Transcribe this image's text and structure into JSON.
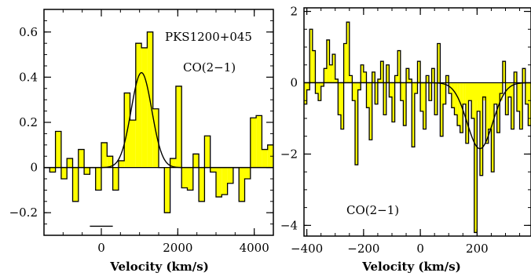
{
  "chart_data": [
    {
      "type": "step",
      "object": "PKS1200+045",
      "annotations": [
        "PKS1200+045",
        "CO(2−1)"
      ],
      "xlabel": "Velocity (km/s)",
      "ylabel": "",
      "xlim": [
        -1500,
        4500
      ],
      "ylim": [
        -0.3,
        0.7
      ],
      "xticks": [
        0,
        2000,
        4000
      ],
      "xtick_labels": [
        "0",
        "2000",
        "4000"
      ],
      "yticks": [
        -0.2,
        0,
        0.2,
        0.4,
        0.6
      ],
      "ytick_labels": [
        "−0.2",
        "0",
        "0.2",
        "0.4",
        "0.6"
      ],
      "fill_color": "#ffff00",
      "series": [
        {
          "style": "histogram",
          "x": [
            -1500,
            -1350,
            -1200,
            -1050,
            -900,
            -750,
            -600,
            -450,
            -300,
            -150,
            0,
            150,
            300,
            450,
            600,
            750,
            900,
            1050,
            1200,
            1350,
            1500,
            1650,
            1800,
            1950,
            2100,
            2250,
            2400,
            2550,
            2700,
            2850,
            3000,
            3150,
            3300,
            3450,
            3600,
            3750,
            3900,
            4050,
            4200,
            4350
          ],
          "values": [
            0.0,
            -0.02,
            0.16,
            -0.05,
            0.04,
            -0.15,
            0.08,
            -0.03,
            0.0,
            -0.1,
            0.11,
            0.05,
            -0.1,
            0.03,
            0.33,
            0.21,
            0.55,
            0.53,
            0.6,
            0.26,
            0.0,
            -0.2,
            0.04,
            0.36,
            -0.09,
            -0.1,
            0.06,
            -0.15,
            0.14,
            -0.02,
            -0.13,
            -0.12,
            -0.07,
            0.0,
            -0.15,
            -0.05,
            0.22,
            0.23,
            0.08,
            0.1
          ]
        },
        {
          "style": "line",
          "name": "",
          "description": "Gaussian fit",
          "peak": 0.42,
          "center": 1050,
          "sigma": 270
        }
      ],
      "marker_line": {
        "x": [
          -300,
          300
        ],
        "y": -0.26
      }
    },
    {
      "type": "step",
      "annotations": [
        "CO(2−1)"
      ],
      "xlabel": "Velocity (km/s)",
      "ylabel": "",
      "xlim": [
        -410,
        390
      ],
      "ylim": [
        -4.3,
        2.1
      ],
      "xticks": [
        -400,
        -200,
        0,
        200
      ],
      "xtick_labels": [
        "−400",
        "−200",
        "0",
        "200"
      ],
      "yticks": [
        -4,
        -2,
        0,
        2
      ],
      "ytick_labels": [
        "−4",
        "−2",
        "0",
        "2"
      ],
      "fill_color": "#ffff00",
      "series": [
        {
          "style": "histogram",
          "x": [
            -410,
            -400,
            -390,
            -380,
            -370,
            -360,
            -350,
            -340,
            -330,
            -320,
            -310,
            -300,
            -290,
            -280,
            -270,
            -260,
            -250,
            -240,
            -230,
            -220,
            -210,
            -200,
            -190,
            -180,
            -170,
            -160,
            -150,
            -140,
            -130,
            -120,
            -110,
            -100,
            -90,
            -80,
            -70,
            -60,
            -50,
            -40,
            -30,
            -20,
            -10,
            0,
            10,
            20,
            30,
            40,
            50,
            60,
            70,
            80,
            90,
            100,
            110,
            120,
            130,
            140,
            150,
            160,
            170,
            180,
            190,
            200,
            210,
            220,
            230,
            240,
            250,
            260,
            270,
            280,
            290,
            300,
            310,
            320,
            330,
            340,
            350,
            360,
            370,
            380
          ],
          "values": [
            -0.6,
            -0.2,
            1.5,
            0.9,
            -0.3,
            -0.5,
            -0.1,
            0.4,
            1.2,
            0.5,
            0.8,
            0.1,
            -0.9,
            -1.3,
            1.1,
            1.7,
            0.2,
            -0.5,
            -2.3,
            -0.2,
            0.5,
            0.3,
            -0.7,
            -1.6,
            0.3,
            -0.6,
            0.1,
            0.6,
            -0.9,
            0.5,
            -0.4,
            -1.1,
            0.2,
            0.9,
            -0.5,
            -1.2,
            0.4,
            0.1,
            -1.8,
            -0.3,
            0.6,
            -0.8,
            -1.3,
            0.2,
            -0.5,
            0.4,
            -0.9,
            1.1,
            -1.5,
            -0.6,
            0.2,
            -0.3,
            -0.7,
            -0.9,
            -1.2,
            -1.4,
            -0.6,
            -1.7,
            -0.5,
            -1.0,
            -4.2,
            -0.8,
            -2.6,
            -0.4,
            -1.7,
            -1.3,
            -2.5,
            -0.6,
            -1.4,
            -0.3,
            0.6,
            -0.9,
            -0.4,
            -1.3,
            0.3,
            -0.8,
            -1.3,
            0.4,
            -0.6,
            -1.2
          ]
        },
        {
          "style": "line",
          "name": "",
          "description": "Gaussian fit",
          "peak": -1.85,
          "center": 210,
          "sigma": 45
        }
      ],
      "fill_band": {
        "x": [
          170,
          290
        ],
        "y": [
          -0.5,
          0
        ]
      }
    }
  ]
}
